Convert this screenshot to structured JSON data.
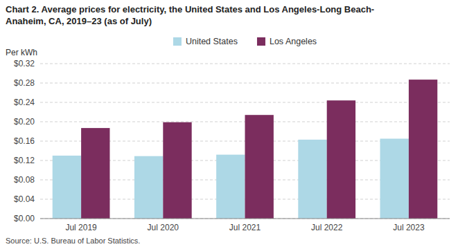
{
  "chart_data": {
    "type": "bar",
    "title": [
      "Chart 2. Average prices for electricity, the United States and Los Angeles-Long Beach-",
      "Anaheim, CA, 2019–23 (as of July)"
    ],
    "ylabel": "Per kWh",
    "source": "Source: U.S. Bureau of Labor Statistics.",
    "categories": [
      "Jul 2019",
      "Jul 2020",
      "Jul 2021",
      "Jul 2022",
      "Jul 2023"
    ],
    "series": [
      {
        "name": "United States",
        "color": "#add8e6",
        "values": [
          0.13,
          0.129,
          0.132,
          0.163,
          0.165
        ]
      },
      {
        "name": "Los Angeles",
        "color": "#7b2d5e",
        "values": [
          0.187,
          0.199,
          0.214,
          0.244,
          0.287
        ]
      }
    ],
    "ylim": [
      0,
      0.32
    ],
    "yticks": [
      {
        "value": 0.0,
        "label": "$0.00"
      },
      {
        "value": 0.04,
        "label": "$0.04"
      },
      {
        "value": 0.08,
        "label": "$0.08"
      },
      {
        "value": 0.12,
        "label": "$0.12"
      },
      {
        "value": 0.16,
        "label": "$0.16"
      },
      {
        "value": 0.2,
        "label": "$0.20"
      },
      {
        "value": 0.24,
        "label": "$0.24"
      },
      {
        "value": 0.28,
        "label": "$0.28"
      },
      {
        "value": 0.32,
        "label": "$0.32"
      }
    ],
    "grid": true,
    "legend": "top"
  }
}
